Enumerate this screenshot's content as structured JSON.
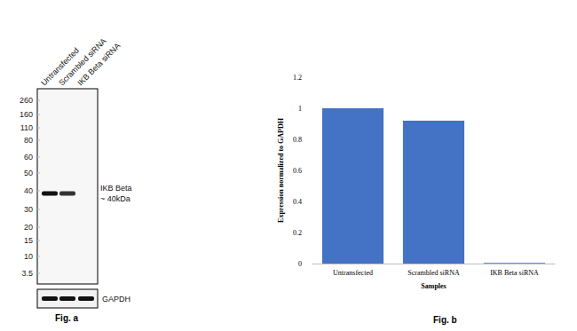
{
  "blot": {
    "caption": "Fig. a",
    "lanes": [
      "Untransfected",
      "Scrambled siRNA",
      "IKB Beta siRNA"
    ],
    "markers": [
      260,
      160,
      110,
      80,
      60,
      50,
      40,
      30,
      20,
      15,
      10,
      3.5
    ],
    "target": {
      "label": "IKB Beta",
      "size_label": "~ 40kDa",
      "band": [
        1,
        0.85,
        0
      ]
    },
    "control": {
      "label": "GAPDH",
      "band": [
        1,
        1,
        1
      ]
    }
  },
  "chart_data": {
    "type": "bar",
    "categories": [
      "Untransfected",
      "Scrambled siRNA",
      "IKB Beta siRNA"
    ],
    "values": [
      1.0,
      0.92,
      0.005
    ],
    "color": "#4472c4",
    "x_label": "Samples",
    "y_label": "Expression normalized to GAPDH",
    "ylim": [
      0,
      1.2
    ],
    "yticks": [
      0,
      0.2,
      0.4,
      0.6,
      0.8,
      1,
      1.2
    ],
    "grid": false,
    "annotations": [
      "Fig. b"
    ]
  }
}
